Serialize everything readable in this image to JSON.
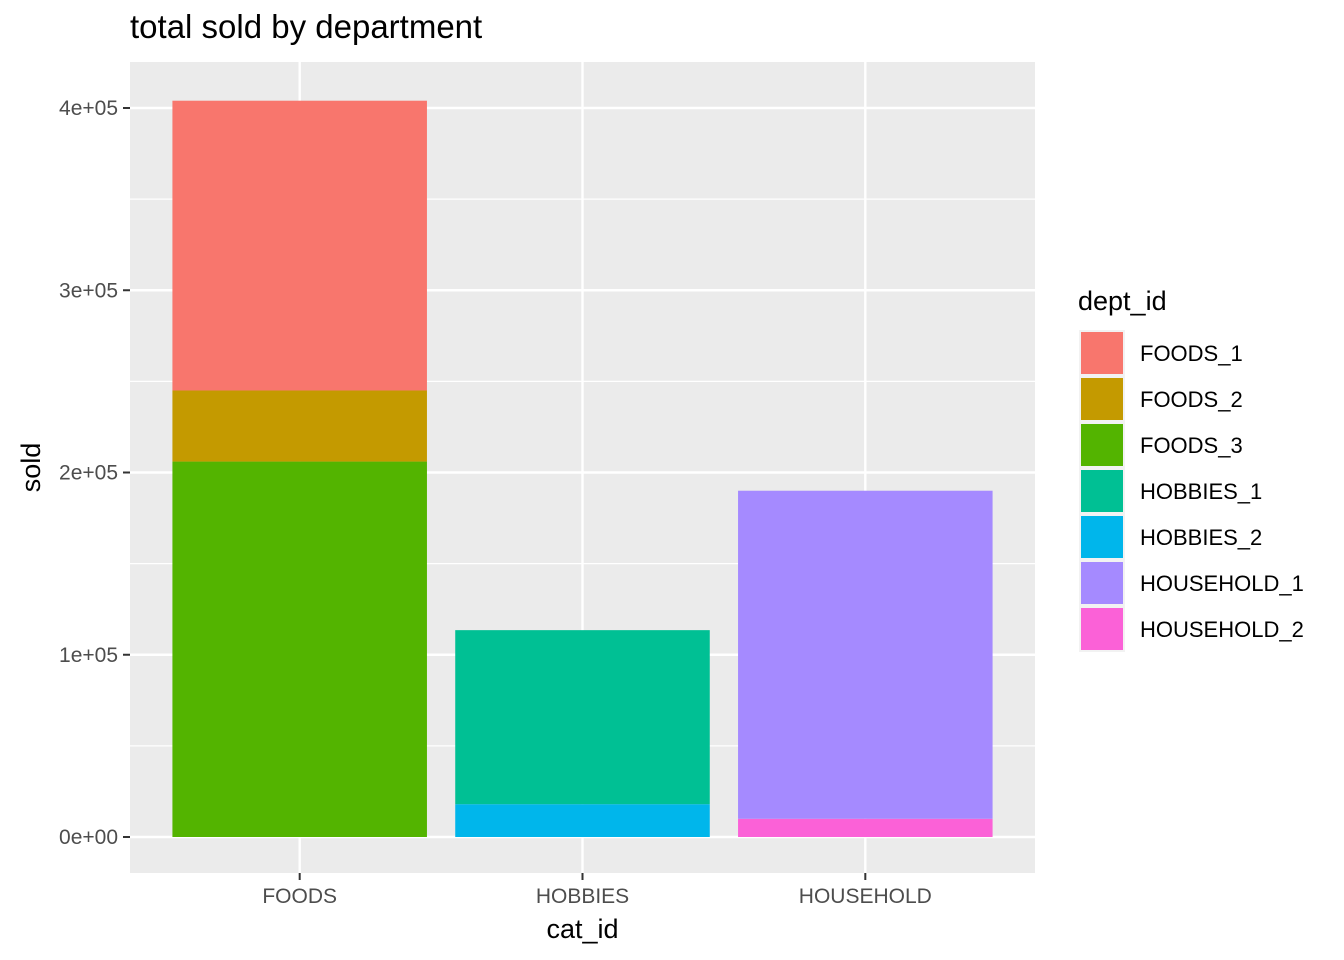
{
  "chart_data": {
    "type": "bar",
    "stacked": true,
    "title": "total sold by department",
    "xlabel": "cat_id",
    "ylabel": "sold",
    "ylim": [
      -20000,
      425000
    ],
    "yticks": [
      {
        "value": 0,
        "label": "0e+00"
      },
      {
        "value": 100000,
        "label": "1e+05"
      },
      {
        "value": 200000,
        "label": "2e+05"
      },
      {
        "value": 300000,
        "label": "3e+05"
      },
      {
        "value": 400000,
        "label": "4e+05"
      }
    ],
    "yminor": [
      50000,
      150000,
      250000,
      350000
    ],
    "categories": [
      "FOODS",
      "HOBBIES",
      "HOUSEHOLD"
    ],
    "legend_title": "dept_id",
    "legend_position": "right",
    "series": [
      {
        "name": "FOODS_1",
        "color": "#F8766D",
        "values": [
          159000,
          0,
          0
        ]
      },
      {
        "name": "FOODS_2",
        "color": "#C49A00",
        "values": [
          39000,
          0,
          0
        ]
      },
      {
        "name": "FOODS_3",
        "color": "#53B400",
        "values": [
          206000,
          0,
          0
        ]
      },
      {
        "name": "HOBBIES_1",
        "color": "#00C094",
        "values": [
          0,
          95500,
          0
        ]
      },
      {
        "name": "HOBBIES_2",
        "color": "#00B6EB",
        "values": [
          0,
          18000,
          0
        ]
      },
      {
        "name": "HOUSEHOLD_1",
        "color": "#A58AFF",
        "values": [
          0,
          0,
          180000
        ]
      },
      {
        "name": "HOUSEHOLD_2",
        "color": "#FB61D7",
        "values": [
          0,
          0,
          10000
        ]
      }
    ],
    "panel_background": "#EBEBEB",
    "grid": true
  }
}
